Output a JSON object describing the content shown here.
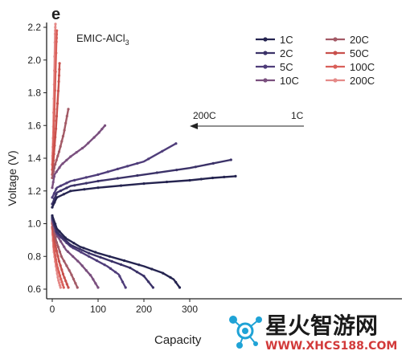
{
  "panel_label": "e",
  "watermark": {
    "text_cn": "星火智游网",
    "text_url": "WWW.XHCS188.COM"
  },
  "chart_data": {
    "type": "line",
    "title": "EMIC-AlCl",
    "title_subscript": "3",
    "xlabel": "Capacity",
    "ylabel": "Voltage (V)",
    "xlim": [
      -5,
      400
    ],
    "ylim": [
      0.55,
      2.2
    ],
    "xticks": [
      0,
      100,
      200,
      300
    ],
    "yticks": [
      0.6,
      0.8,
      1.0,
      1.2,
      1.4,
      1.6,
      1.8,
      2.0,
      2.2
    ],
    "xtick_labels": [
      "0",
      "100",
      "200",
      "300"
    ],
    "ytick_labels": [
      "0.6",
      "0.8",
      "1.0",
      "1.2",
      "1.4",
      "1.6",
      "1.8",
      "2.0",
      "2.2"
    ],
    "grid": false,
    "legend_position": "top-right",
    "annotation": {
      "left": "200C",
      "right": "1C"
    },
    "series": [
      {
        "name": "1C",
        "color": "#252450",
        "charge": [
          [
            0,
            1.1
          ],
          [
            10,
            1.16
          ],
          [
            40,
            1.2
          ],
          [
            100,
            1.22
          ],
          [
            200,
            1.245
          ],
          [
            300,
            1.265
          ],
          [
            350,
            1.28
          ],
          [
            400,
            1.29
          ]
        ],
        "discharge": [
          [
            0,
            1.05
          ],
          [
            10,
            0.97
          ],
          [
            30,
            0.91
          ],
          [
            60,
            0.86
          ],
          [
            100,
            0.82
          ],
          [
            150,
            0.78
          ],
          [
            200,
            0.74
          ],
          [
            240,
            0.7
          ],
          [
            265,
            0.66
          ],
          [
            278,
            0.61
          ]
        ]
      },
      {
        "name": "2C",
        "color": "#3b3268",
        "charge": [
          [
            0,
            1.12
          ],
          [
            10,
            1.19
          ],
          [
            40,
            1.23
          ],
          [
            100,
            1.26
          ],
          [
            200,
            1.3
          ],
          [
            300,
            1.34
          ],
          [
            390,
            1.39
          ]
        ],
        "discharge": [
          [
            0,
            1.04
          ],
          [
            10,
            0.95
          ],
          [
            40,
            0.87
          ],
          [
            80,
            0.82
          ],
          [
            130,
            0.77
          ],
          [
            170,
            0.73
          ],
          [
            200,
            0.68
          ],
          [
            220,
            0.61
          ]
        ]
      },
      {
        "name": "5C",
        "color": "#4f3d7a",
        "charge": [
          [
            0,
            1.16
          ],
          [
            10,
            1.22
          ],
          [
            40,
            1.26
          ],
          [
            100,
            1.3
          ],
          [
            150,
            1.34
          ],
          [
            200,
            1.38
          ],
          [
            270,
            1.49
          ]
        ],
        "discharge": [
          [
            0,
            1.03
          ],
          [
            10,
            0.94
          ],
          [
            40,
            0.86
          ],
          [
            80,
            0.8
          ],
          [
            120,
            0.74
          ],
          [
            145,
            0.69
          ],
          [
            160,
            0.61
          ]
        ]
      },
      {
        "name": "10C",
        "color": "#7a4f7e",
        "charge": [
          [
            0,
            1.22
          ],
          [
            5,
            1.3
          ],
          [
            20,
            1.36
          ],
          [
            40,
            1.41
          ],
          [
            70,
            1.47
          ],
          [
            100,
            1.55
          ],
          [
            115,
            1.6
          ]
        ],
        "discharge": [
          [
            0,
            1.02
          ],
          [
            10,
            0.93
          ],
          [
            30,
            0.84
          ],
          [
            60,
            0.76
          ],
          [
            85,
            0.68
          ],
          [
            100,
            0.61
          ]
        ]
      },
      {
        "name": "20C",
        "color": "#a35a66",
        "charge": [
          [
            0,
            1.28
          ],
          [
            5,
            1.35
          ],
          [
            15,
            1.44
          ],
          [
            25,
            1.55
          ],
          [
            35,
            1.7
          ]
        ],
        "discharge": [
          [
            0,
            1.01
          ],
          [
            8,
            0.9
          ],
          [
            20,
            0.8
          ],
          [
            40,
            0.7
          ],
          [
            55,
            0.61
          ]
        ]
      },
      {
        "name": "50C",
        "color": "#c8504c",
        "charge": [
          [
            0,
            1.3
          ],
          [
            3,
            1.4
          ],
          [
            8,
            1.58
          ],
          [
            14,
            1.85
          ],
          [
            16,
            1.98
          ]
        ],
        "discharge": [
          [
            0,
            1.0
          ],
          [
            6,
            0.88
          ],
          [
            15,
            0.77
          ],
          [
            25,
            0.68
          ],
          [
            35,
            0.61
          ]
        ]
      },
      {
        "name": "100C",
        "color": "#d9605a",
        "charge": [
          [
            0,
            1.33
          ],
          [
            2,
            1.45
          ],
          [
            5,
            1.7
          ],
          [
            9,
            2.1
          ],
          [
            10,
            2.18
          ]
        ],
        "discharge": [
          [
            0,
            0.98
          ],
          [
            4,
            0.85
          ],
          [
            10,
            0.75
          ],
          [
            18,
            0.67
          ],
          [
            25,
            0.61
          ]
        ]
      },
      {
        "name": "200C",
        "color": "#e58a88",
        "charge": [
          [
            0,
            1.36
          ],
          [
            2,
            1.55
          ],
          [
            4,
            1.85
          ],
          [
            6,
            2.15
          ],
          [
            7,
            2.22
          ]
        ],
        "discharge": [
          [
            0,
            0.97
          ],
          [
            3,
            0.84
          ],
          [
            8,
            0.74
          ],
          [
            13,
            0.66
          ],
          [
            18,
            0.61
          ]
        ]
      }
    ]
  }
}
